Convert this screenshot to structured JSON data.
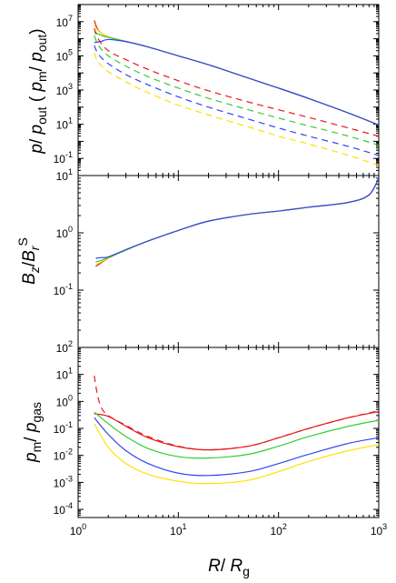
{
  "chart_data": [
    {
      "type": "line",
      "panel": "top",
      "ylabel": "p/ p_out ( p_m/ p_out)",
      "xscale": "log",
      "yscale": "log",
      "xlim": [
        1,
        1000
      ],
      "ylim": [
        0.01,
        100000000
      ],
      "yticks": [
        {
          "v": 0.1,
          "m": "10",
          "e": "-1"
        },
        {
          "v": 10,
          "m": "10",
          "e": "1"
        },
        {
          "v": 1000,
          "m": "10",
          "e": "3"
        },
        {
          "v": 100000,
          "m": "10",
          "e": "5"
        },
        {
          "v": 10000000,
          "m": "10",
          "e": "7"
        }
      ],
      "series": [
        {
          "color": "#e41a1c",
          "dash": false,
          "points": [
            [
              1.45,
              12000000
            ],
            [
              1.6,
              3000000
            ],
            [
              2,
              1300000
            ],
            [
              3,
              700000
            ],
            [
              5,
              330000
            ],
            [
              10,
              100000
            ],
            [
              20,
              30000
            ],
            [
              50,
              5000
            ],
            [
              100,
              1300
            ],
            [
              200,
              320
            ],
            [
              500,
              45
            ],
            [
              1000,
              9
            ]
          ]
        },
        {
          "color": "#ffe000",
          "dash": false,
          "points": [
            [
              1.45,
              6000000
            ],
            [
              1.6,
              2800000
            ],
            [
              2,
              1300000
            ],
            [
              3,
              700000
            ],
            [
              5,
              330000
            ],
            [
              10,
              100000
            ],
            [
              20,
              30000
            ],
            [
              50,
              5000
            ],
            [
              100,
              1300
            ],
            [
              200,
              320
            ],
            [
              500,
              45
            ],
            [
              1000,
              9
            ]
          ]
        },
        {
          "color": "#33cc33",
          "dash": false,
          "points": [
            [
              1.45,
              2500000
            ],
            [
              1.7,
              1600000
            ],
            [
              2,
              1200000
            ],
            [
              3,
              700000
            ],
            [
              5,
              330000
            ],
            [
              10,
              100000
            ],
            [
              20,
              30000
            ],
            [
              50,
              5000
            ],
            [
              100,
              1300
            ],
            [
              200,
              320
            ],
            [
              500,
              45
            ],
            [
              1000,
              9
            ]
          ]
        },
        {
          "color": "#3344ee",
          "dash": false,
          "points": [
            [
              1.45,
              600000
            ],
            [
              1.7,
              700000
            ],
            [
              2,
              900000
            ],
            [
              3,
              680000
            ],
            [
              5,
              330000
            ],
            [
              10,
              100000
            ],
            [
              20,
              30000
            ],
            [
              50,
              5000
            ],
            [
              100,
              1300
            ],
            [
              200,
              320
            ],
            [
              500,
              45
            ],
            [
              1000,
              9
            ]
          ]
        },
        {
          "color": "#e41a1c",
          "dash": true,
          "points": [
            [
              1.45,
              4000000
            ],
            [
              1.6,
              900000
            ],
            [
              2,
              200000
            ],
            [
              3,
              60000
            ],
            [
              5,
              16000
            ],
            [
              10,
              3500
            ],
            [
              20,
              900
            ],
            [
              50,
              200
            ],
            [
              100,
              70
            ],
            [
              200,
              25
            ],
            [
              500,
              6
            ],
            [
              1000,
              2
            ]
          ]
        },
        {
          "color": "#33cc33",
          "dash": true,
          "points": [
            [
              1.45,
              1500000
            ],
            [
              1.6,
              400000
            ],
            [
              2,
              100000
            ],
            [
              3,
              25000
            ],
            [
              5,
              6000
            ],
            [
              10,
              1300
            ],
            [
              20,
              330
            ],
            [
              50,
              70
            ],
            [
              100,
              23
            ],
            [
              200,
              8
            ],
            [
              500,
              2
            ],
            [
              1000,
              0.6
            ]
          ]
        },
        {
          "color": "#3344ee",
          "dash": true,
          "points": [
            [
              1.45,
              400000
            ],
            [
              1.6,
              120000
            ],
            [
              2,
              35000
            ],
            [
              3,
              8000
            ],
            [
              5,
              2000
            ],
            [
              10,
              400
            ],
            [
              20,
              100
            ],
            [
              50,
              20
            ],
            [
              100,
              6
            ],
            [
              200,
              2
            ],
            [
              500,
              0.5
            ],
            [
              1000,
              0.15
            ]
          ]
        },
        {
          "color": "#ffe000",
          "dash": true,
          "points": [
            [
              1.45,
              150000
            ],
            [
              1.6,
              40000
            ],
            [
              2,
              12000
            ],
            [
              3,
              3000
            ],
            [
              5,
              700
            ],
            [
              10,
              130
            ],
            [
              20,
              35
            ],
            [
              50,
              7
            ],
            [
              100,
              2
            ],
            [
              200,
              0.7
            ],
            [
              500,
              0.15
            ],
            [
              1000,
              0.04
            ]
          ]
        }
      ]
    },
    {
      "type": "line",
      "panel": "middle",
      "ylabel": "B_z/B_r^S",
      "xscale": "log",
      "yscale": "log",
      "xlim": [
        1,
        1000
      ],
      "ylim": [
        0.01,
        10
      ],
      "yticks": [
        {
          "v": 0.1,
          "m": "10",
          "e": "-1"
        },
        {
          "v": 1,
          "m": "10",
          "e": "0"
        },
        {
          "v": 10,
          "m": "10",
          "e": "1"
        }
      ],
      "series": [
        {
          "color": "#e41a1c",
          "dash": false,
          "points": [
            [
              1.5,
              0.26
            ],
            [
              1.7,
              0.3
            ],
            [
              2,
              0.36
            ],
            [
              3,
              0.5
            ],
            [
              5,
              0.72
            ],
            [
              10,
              1.1
            ],
            [
              20,
              1.6
            ],
            [
              50,
              2.1
            ],
            [
              100,
              2.4
            ],
            [
              200,
              2.8
            ],
            [
              500,
              3.4
            ],
            [
              800,
              4.6
            ],
            [
              1000,
              9
            ]
          ]
        },
        {
          "color": "#ffe000",
          "dash": false,
          "points": [
            [
              1.5,
              0.28
            ],
            [
              1.7,
              0.31
            ],
            [
              2,
              0.36
            ],
            [
              3,
              0.5
            ],
            [
              5,
              0.72
            ],
            [
              10,
              1.1
            ],
            [
              20,
              1.6
            ],
            [
              50,
              2.1
            ],
            [
              100,
              2.4
            ],
            [
              200,
              2.8
            ],
            [
              500,
              3.4
            ],
            [
              800,
              4.6
            ],
            [
              1000,
              9
            ]
          ]
        },
        {
          "color": "#33cc33",
          "dash": false,
          "points": [
            [
              1.5,
              0.31
            ],
            [
              1.7,
              0.33
            ],
            [
              2,
              0.37
            ],
            [
              3,
              0.5
            ],
            [
              5,
              0.72
            ],
            [
              10,
              1.1
            ],
            [
              20,
              1.6
            ],
            [
              50,
              2.1
            ],
            [
              100,
              2.4
            ],
            [
              200,
              2.8
            ],
            [
              500,
              3.4
            ],
            [
              800,
              4.6
            ],
            [
              1000,
              9
            ]
          ]
        },
        {
          "color": "#3344ee",
          "dash": false,
          "points": [
            [
              1.5,
              0.36
            ],
            [
              1.7,
              0.37
            ],
            [
              2,
              0.38
            ],
            [
              3,
              0.51
            ],
            [
              5,
              0.72
            ],
            [
              10,
              1.1
            ],
            [
              20,
              1.6
            ],
            [
              50,
              2.1
            ],
            [
              100,
              2.4
            ],
            [
              200,
              2.8
            ],
            [
              500,
              3.4
            ],
            [
              800,
              4.6
            ],
            [
              1000,
              9
            ]
          ]
        }
      ]
    },
    {
      "type": "line",
      "panel": "bottom",
      "xlabel": "R/ R_g",
      "ylabel": "p_m/ p_gas",
      "xscale": "log",
      "yscale": "log",
      "xlim": [
        1,
        1000
      ],
      "ylim": [
        5e-05,
        100
      ],
      "xticks": [
        {
          "v": 1,
          "m": "10",
          "e": "0"
        },
        {
          "v": 10,
          "m": "10",
          "e": "1"
        },
        {
          "v": 100,
          "m": "10",
          "e": "2"
        },
        {
          "v": 1000,
          "m": "10",
          "e": "3"
        }
      ],
      "yticks": [
        {
          "v": 0.0001,
          "m": "10",
          "e": "-4"
        },
        {
          "v": 0.001,
          "m": "10",
          "e": "-3"
        },
        {
          "v": 0.01,
          "m": "10",
          "e": "-2"
        },
        {
          "v": 0.1,
          "m": "10",
          "e": "-1"
        },
        {
          "v": 1,
          "m": "10",
          "e": "0"
        },
        {
          "v": 10,
          "m": "10",
          "e": "1"
        },
        {
          "v": 100,
          "m": "10",
          "e": "2"
        }
      ],
      "series": [
        {
          "color": "#e41a1c",
          "dash": true,
          "points": [
            [
              1.45,
              9
            ],
            [
              1.55,
              2
            ],
            [
              1.7,
              0.6
            ],
            [
              2,
              0.3
            ],
            [
              3,
              0.13
            ],
            [
              5,
              0.05
            ],
            [
              10,
              0.022
            ],
            [
              20,
              0.016
            ],
            [
              50,
              0.022
            ],
            [
              100,
              0.045
            ],
            [
              200,
              0.1
            ],
            [
              500,
              0.25
            ],
            [
              1000,
              0.45
            ]
          ]
        },
        {
          "color": "#e41a1c",
          "dash": false,
          "points": [
            [
              1.45,
              0.35
            ],
            [
              2,
              0.28
            ],
            [
              3,
              0.12
            ],
            [
              5,
              0.045
            ],
            [
              10,
              0.021
            ],
            [
              20,
              0.016
            ],
            [
              50,
              0.022
            ],
            [
              100,
              0.045
            ],
            [
              200,
              0.1
            ],
            [
              500,
              0.25
            ],
            [
              1000,
              0.42
            ]
          ]
        },
        {
          "color": "#33cc33",
          "dash": false,
          "points": [
            [
              1.45,
              0.4
            ],
            [
              2,
              0.15
            ],
            [
              3,
              0.05
            ],
            [
              5,
              0.018
            ],
            [
              10,
              0.009
            ],
            [
              20,
              0.008
            ],
            [
              50,
              0.011
            ],
            [
              100,
              0.022
            ],
            [
              200,
              0.05
            ],
            [
              500,
              0.12
            ],
            [
              1000,
              0.2
            ]
          ]
        },
        {
          "color": "#3344ee",
          "dash": false,
          "points": [
            [
              1.45,
              0.25
            ],
            [
              2,
              0.06
            ],
            [
              3,
              0.015
            ],
            [
              5,
              0.005
            ],
            [
              10,
              0.0022
            ],
            [
              20,
              0.0018
            ],
            [
              50,
              0.0025
            ],
            [
              100,
              0.005
            ],
            [
              200,
              0.011
            ],
            [
              500,
              0.028
            ],
            [
              1000,
              0.045
            ]
          ]
        },
        {
          "color": "#ffe000",
          "dash": false,
          "points": [
            [
              1.45,
              0.15
            ],
            [
              2,
              0.02
            ],
            [
              3,
              0.005
            ],
            [
              5,
              0.002
            ],
            [
              10,
              0.0011
            ],
            [
              20,
              0.0009
            ],
            [
              50,
              0.0012
            ],
            [
              100,
              0.0025
            ],
            [
              200,
              0.006
            ],
            [
              500,
              0.015
            ],
            [
              1000,
              0.025
            ]
          ]
        }
      ]
    }
  ],
  "labels": {
    "top_ylabel": {
      "p": "p",
      "slash1": "/ ",
      "p_out": "p",
      "out": "out",
      "paren_open": " ( ",
      "p_m": "p",
      "m": "m",
      "slash2": "/ ",
      "p2": "p",
      "out2": "out",
      "paren_close": ")"
    },
    "mid_ylabel": {
      "B1": "B",
      "z": "z",
      "slash": "/",
      "B2": "B",
      "r": "r",
      "S": "S"
    },
    "bot_ylabel": {
      "p": "p",
      "m": "m",
      "slash": "/ ",
      "p2": "p",
      "gas": "gas"
    },
    "xlabel": {
      "R": "R",
      "slash": "/ ",
      "R2": "R",
      "g": "g"
    }
  }
}
